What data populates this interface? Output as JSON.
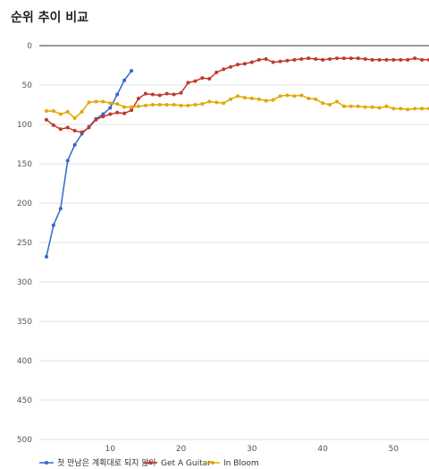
{
  "title": "순위 추이 비교",
  "chart_data": {
    "type": "line",
    "title": "순위 추이 비교",
    "xlabel": "",
    "ylabel": "",
    "xlim": [
      0,
      55
    ],
    "ylim": [
      0,
      500
    ],
    "y_inverted": true,
    "grid": true,
    "legend_position": "bottom-left",
    "x_ticks": [
      10,
      20,
      30,
      40,
      50
    ],
    "y_ticks": [
      0,
      50,
      100,
      150,
      200,
      250,
      300,
      350,
      400,
      450,
      500
    ],
    "series": [
      {
        "name": "첫 만남은 계획대로 되지 않아",
        "color": "#3366cc",
        "x": [
          1,
          2,
          3,
          4,
          5,
          6,
          7,
          8,
          9,
          10,
          11,
          12,
          13
        ],
        "y": [
          268,
          228,
          207,
          146,
          126,
          112,
          103,
          93,
          87,
          79,
          62,
          44,
          32
        ]
      },
      {
        "name": "Get A Guitar",
        "color": "#c0392b",
        "x": [
          1,
          2,
          3,
          4,
          5,
          6,
          7,
          8,
          9,
          10,
          11,
          12,
          13,
          14,
          15,
          16,
          17,
          18,
          19,
          20,
          21,
          22,
          23,
          24,
          25,
          26,
          27,
          28,
          29,
          30,
          31,
          32,
          33,
          34,
          35,
          36,
          37,
          38,
          39,
          40,
          41,
          42,
          43,
          44,
          45,
          46,
          47,
          48,
          49,
          50,
          51,
          52,
          53,
          54,
          55
        ],
        "y": [
          94,
          101,
          106,
          104,
          108,
          110,
          104,
          94,
          90,
          87,
          85,
          86,
          82,
          67,
          61,
          62,
          63,
          61,
          62,
          60,
          47,
          45,
          41,
          42,
          34,
          30,
          27,
          24,
          23,
          21,
          18,
          17,
          21,
          20,
          19,
          18,
          17,
          16,
          17,
          18,
          17,
          16,
          16,
          16,
          16,
          17,
          18,
          18,
          18,
          18,
          18,
          18,
          16,
          18,
          18
        ]
      },
      {
        "name": "In Bloom",
        "color": "#e0a800",
        "x": [
          1,
          2,
          3,
          4,
          5,
          6,
          7,
          8,
          9,
          10,
          11,
          12,
          13,
          14,
          15,
          16,
          17,
          18,
          19,
          20,
          21,
          22,
          23,
          24,
          25,
          26,
          27,
          28,
          29,
          30,
          31,
          32,
          33,
          34,
          35,
          36,
          37,
          38,
          39,
          40,
          41,
          42,
          43,
          44,
          45,
          46,
          47,
          48,
          49,
          50,
          51,
          52,
          53,
          54,
          55
        ],
        "y": [
          83,
          83,
          87,
          84,
          92,
          84,
          72,
          71,
          71,
          73,
          74,
          78,
          78,
          77,
          76,
          75,
          75,
          75,
          75,
          76,
          76,
          75,
          74,
          71,
          72,
          73,
          68,
          64,
          66,
          67,
          68,
          70,
          69,
          64,
          63,
          64,
          63,
          67,
          68,
          73,
          75,
          71,
          77,
          77,
          77,
          78,
          78,
          79,
          77,
          80,
          80,
          81,
          80,
          80,
          80
        ]
      }
    ]
  }
}
